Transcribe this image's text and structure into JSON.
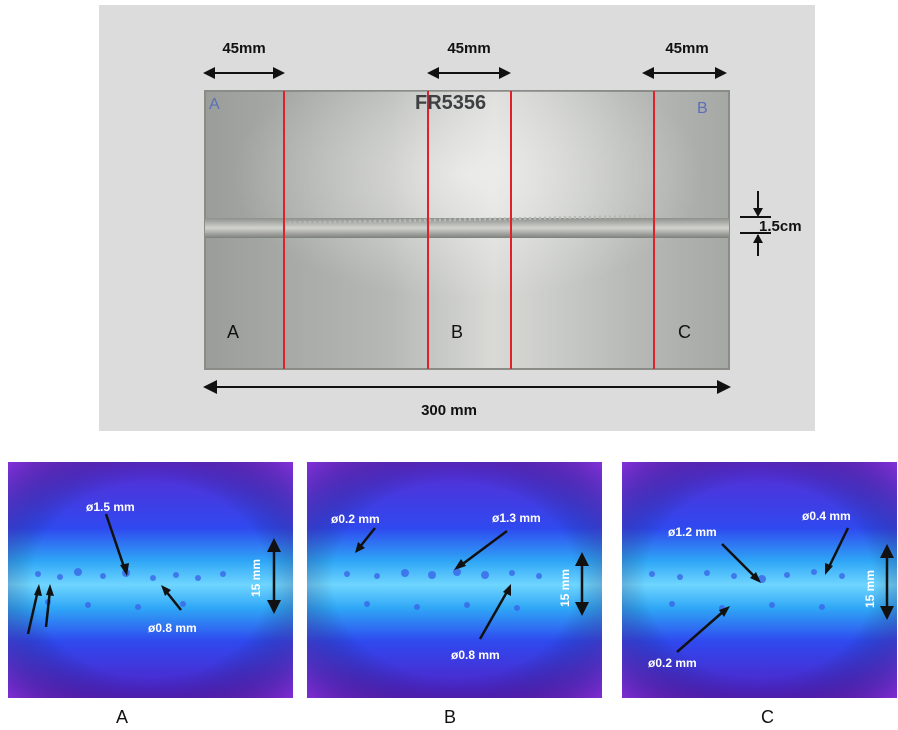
{
  "photo": {
    "dimension_45_left": "45mm",
    "dimension_45_mid": "45mm",
    "dimension_45_right": "45mm",
    "handwritten_a": "A",
    "handwritten_b": "B",
    "plate_code": "FR5356",
    "section_a": "A",
    "section_b": "B",
    "section_c": "C",
    "bead_width": "1.5cm",
    "length": "300 mm"
  },
  "radiographs": [
    {
      "id": "A",
      "caption": "A",
      "pores": [
        {
          "label": "ø1.5 mm"
        },
        {
          "label": "ø0.8 mm"
        }
      ],
      "width_label": "15 mm"
    },
    {
      "id": "B",
      "caption": "B",
      "pores": [
        {
          "label": "ø0.2 mm"
        },
        {
          "label": "ø1.3 mm"
        },
        {
          "label": "ø0.8 mm"
        }
      ],
      "width_label": "15 mm"
    },
    {
      "id": "C",
      "caption": "C",
      "pores": [
        {
          "label": "ø1.2 mm"
        },
        {
          "label": "ø0.4 mm"
        },
        {
          "label": "ø0.2 mm"
        }
      ],
      "width_label": "15 mm"
    }
  ],
  "colors": {
    "cut_line": "#e0202a",
    "plate": "#b3b3b0",
    "background": "#dedede",
    "radiograph_edge": "#6a2cd8",
    "radiograph_core": "#4fc8ff"
  }
}
